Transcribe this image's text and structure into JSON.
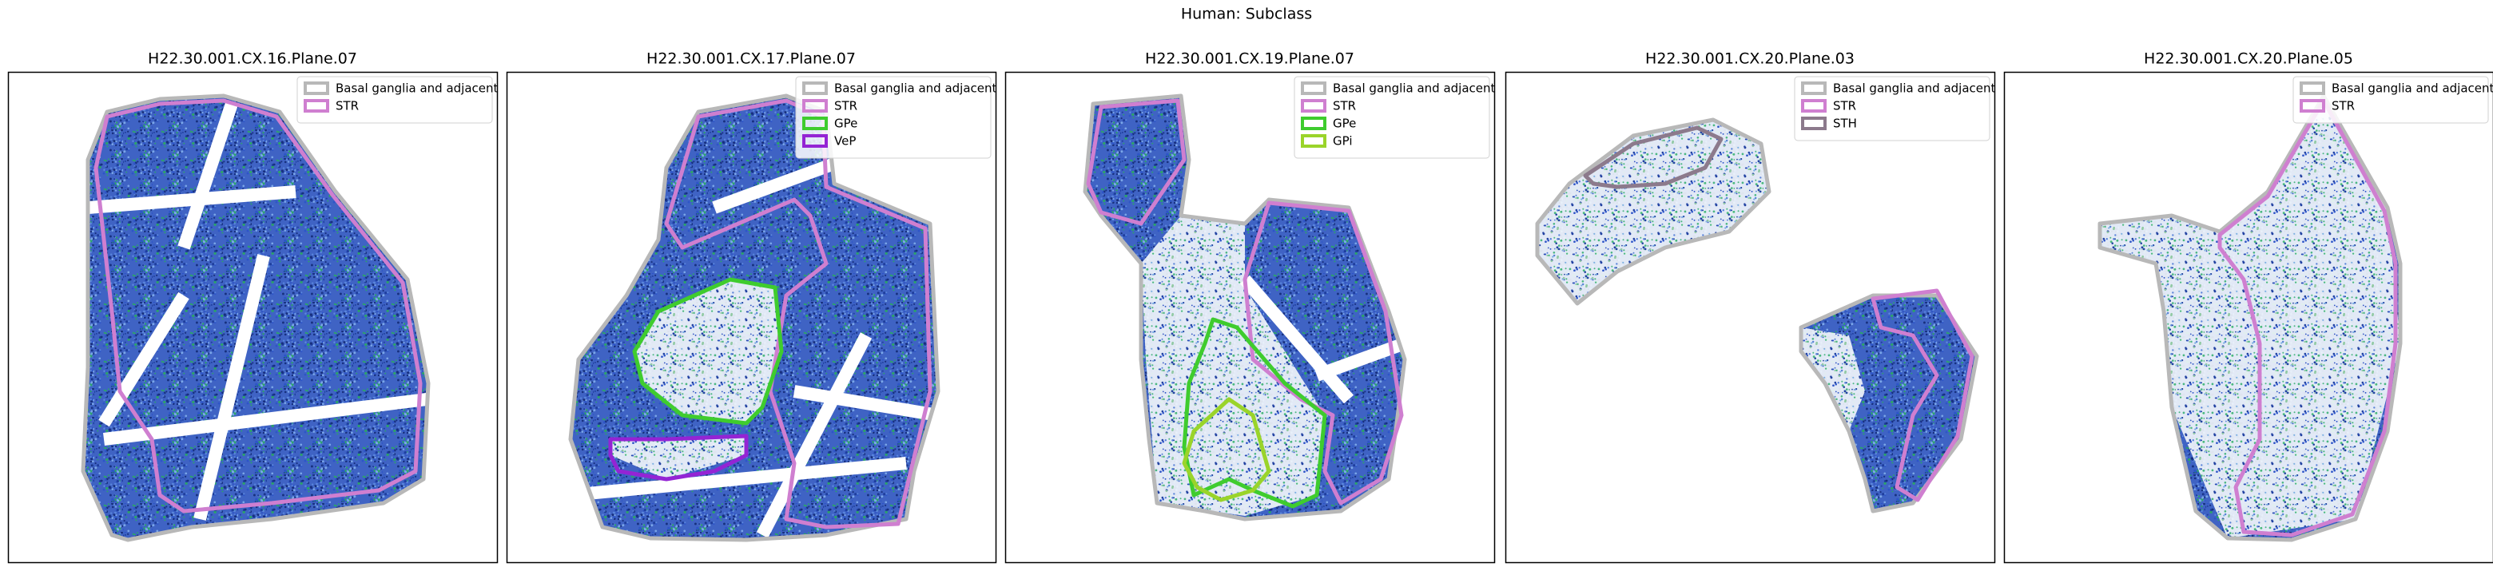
{
  "title": "Human: Subclass",
  "panels": [
    {
      "title": "H22.30.001.CX.16.Plane.07",
      "legend": [
        {
          "name": "Basal ganglia and adjacent",
          "color": "#b8b8b8"
        },
        {
          "name": "STR",
          "color": "#cf7fd0"
        }
      ]
    },
    {
      "title": "H22.30.001.CX.17.Plane.07",
      "legend": [
        {
          "name": "Basal ganglia and adjacent",
          "color": "#b8b8b8"
        },
        {
          "name": "STR",
          "color": "#cf7fd0"
        },
        {
          "name": "GPe",
          "color": "#3fcc2e"
        },
        {
          "name": "VeP",
          "color": "#9424d4"
        }
      ]
    },
    {
      "title": "H22.30.001.CX.19.Plane.07",
      "legend": [
        {
          "name": "Basal ganglia and adjacent",
          "color": "#b8b8b8"
        },
        {
          "name": "STR",
          "color": "#cf7fd0"
        },
        {
          "name": "GPe",
          "color": "#3fcc2e"
        },
        {
          "name": "GPi",
          "color": "#9ad42a"
        }
      ]
    },
    {
      "title": "H22.30.001.CX.20.Plane.03",
      "legend": [
        {
          "name": "Basal ganglia and adjacent",
          "color": "#b8b8b8"
        },
        {
          "name": "STR",
          "color": "#cf7fd0"
        },
        {
          "name": "STH",
          "color": "#8c7a8c"
        }
      ]
    },
    {
      "title": "H22.30.001.CX.20.Plane.05",
      "legend": [
        {
          "name": "Basal ganglia and adjacent",
          "color": "#b8b8b8"
        },
        {
          "name": "STR",
          "color": "#cf7fd0"
        }
      ]
    }
  ]
}
